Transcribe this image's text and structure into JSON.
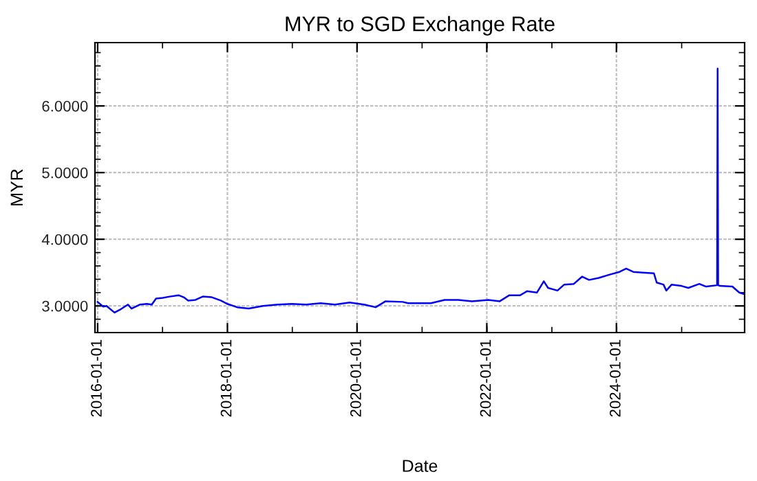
{
  "chart_data": {
    "type": "line",
    "title": "MYR to SGD Exchange Rate",
    "xlabel": "Date",
    "ylabel": "MYR",
    "xlim": [
      "2015-12-17",
      "2025-12-23"
    ],
    "ylim": [
      2.6,
      6.95
    ],
    "xticks": [
      {
        "value": "2016-01-01",
        "label": "2016-01-01"
      },
      {
        "value": "2018-01-01",
        "label": "2018-01-01"
      },
      {
        "value": "2020-01-01",
        "label": "2020-01-01"
      },
      {
        "value": "2022-01-01",
        "label": "2022-01-01"
      },
      {
        "value": "2024-01-01",
        "label": "2024-01-01"
      }
    ],
    "yticks": [
      {
        "value": 3,
        "label": "3.0000"
      },
      {
        "value": 4,
        "label": "4.0000"
      },
      {
        "value": 5,
        "label": "5.0000"
      },
      {
        "value": 6,
        "label": "6.0000"
      }
    ],
    "grid": true,
    "legend": false,
    "marker": "none",
    "line_style": "solid",
    "series": [
      {
        "color": "#0000ff",
        "x": [
          "2016-01-01",
          "2016-02-01",
          "2016-02-20",
          "2016-04-05",
          "2016-05-10",
          "2016-06-20",
          "2016-07-10",
          "2016-08-25",
          "2016-10-05",
          "2016-11-01",
          "2016-11-25",
          "2017-01-01",
          "2017-02-10",
          "2017-04-01",
          "2017-04-30",
          "2017-05-25",
          "2017-07-05",
          "2017-08-15",
          "2017-10-05",
          "2017-11-25",
          "2018-01-01",
          "2018-02-25",
          "2018-05-01",
          "2018-07-20",
          "2018-10-10",
          "2018-12-31",
          "2019-03-20",
          "2019-06-10",
          "2019-08-30",
          "2019-11-20",
          "2020-02-10",
          "2020-04-15",
          "2020-06-10",
          "2020-09-15",
          "2020-10-15",
          "2020-11-10",
          "2021-01-15",
          "2021-02-20",
          "2021-05-08",
          "2021-07-25",
          "2021-10-10",
          "2022-01-10",
          "2022-03-15",
          "2022-05-08",
          "2022-07-08",
          "2022-08-15",
          "2022-10-10",
          "2022-11-18",
          "2022-12-12",
          "2023-02-03",
          "2023-03-13",
          "2023-05-06",
          "2023-06-22",
          "2023-07-31",
          "2023-09-23",
          "2023-11-24",
          "2024-01-18",
          "2024-02-25",
          "2024-04-05",
          "2024-05-29",
          "2024-07-30",
          "2024-08-15",
          "2024-09-22",
          "2024-10-08",
          "2024-11-07",
          "2025-01-01",
          "2025-02-09",
          "2025-04-12",
          "2025-05-20",
          "2025-07-21",
          "2025-07-24",
          "2025-07-27",
          "2025-08-06",
          "2025-10-15",
          "2025-11-23",
          "2025-12-16"
        ],
        "values": [
          3.06,
          2.99,
          3.0,
          2.9,
          2.95,
          3.02,
          2.96,
          3.02,
          3.03,
          3.02,
          3.11,
          3.12,
          3.14,
          3.16,
          3.13,
          3.08,
          3.09,
          3.14,
          3.13,
          3.08,
          3.03,
          2.98,
          2.96,
          3.0,
          3.02,
          3.03,
          3.02,
          3.04,
          3.02,
          3.05,
          3.02,
          2.98,
          3.07,
          3.06,
          3.04,
          3.04,
          3.04,
          3.04,
          3.09,
          3.09,
          3.07,
          3.09,
          3.07,
          3.16,
          3.16,
          3.22,
          3.2,
          3.37,
          3.27,
          3.23,
          3.32,
          3.33,
          3.44,
          3.39,
          3.42,
          3.47,
          3.51,
          3.56,
          3.51,
          3.5,
          3.49,
          3.35,
          3.32,
          3.23,
          3.32,
          3.3,
          3.27,
          3.33,
          3.29,
          3.31,
          6.56,
          3.31,
          3.3,
          3.29,
          3.2,
          3.18
        ]
      }
    ]
  }
}
